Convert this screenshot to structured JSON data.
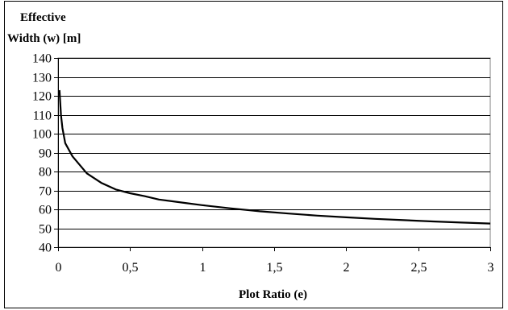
{
  "chart_data": {
    "type": "line",
    "ylabel_line1": "Effective",
    "ylabel_line2": "Width (w) [m]",
    "xlabel": "Plot Ratio (e)",
    "xlim": [
      0,
      3
    ],
    "ylim": [
      40,
      140
    ],
    "x_ticks": [
      0,
      0.5,
      1,
      1.5,
      2,
      2.5,
      3
    ],
    "x_tick_labels": [
      "0",
      "0,5",
      "1",
      "1,5",
      "2",
      "2,5",
      "3"
    ],
    "y_ticks": [
      40,
      50,
      60,
      70,
      80,
      90,
      100,
      110,
      120,
      130,
      140
    ],
    "y_tick_labels": [
      "40",
      "50",
      "60",
      "70",
      "80",
      "90",
      "100",
      "110",
      "120",
      "130",
      "140"
    ],
    "grid": "horizontal",
    "series": [
      {
        "x": [
          0.01,
          0.02,
          0.03,
          0.05,
          0.1,
          0.2,
          0.3,
          0.4,
          0.5,
          0.6,
          0.7,
          0.8,
          0.9,
          1.0,
          1.2,
          1.4,
          1.6,
          1.8,
          2.0,
          2.2,
          2.4,
          2.6,
          2.8,
          3.0
        ],
        "y": [
          123,
          110,
          103,
          95,
          88,
          79,
          74,
          70.5,
          68.5,
          67,
          65.2,
          64.2,
          63.2,
          62.2,
          60.5,
          59,
          57.8,
          56.7,
          55.8,
          55,
          54.3,
          53.6,
          53,
          52.5
        ],
        "color": "#000000"
      }
    ]
  }
}
